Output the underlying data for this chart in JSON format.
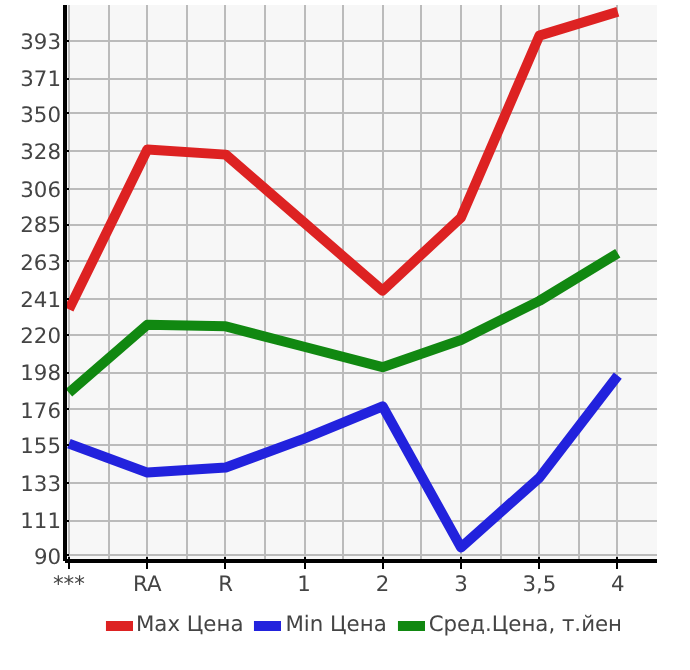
{
  "chart_data": {
    "type": "line",
    "categories": [
      "***",
      "RA",
      "R",
      "1",
      "2",
      "3",
      "3,5",
      "4"
    ],
    "series": [
      {
        "name": "Max Цена",
        "color": "#dd2222",
        "values": [
          235,
          329,
          326,
          286,
          246,
          289,
          396,
          410
        ]
      },
      {
        "name": "Min Цена",
        "color": "#2222dd",
        "values": [
          156,
          139,
          142,
          159,
          178,
          95,
          136,
          196
        ]
      },
      {
        "name": "Сред.Цена, т.йен",
        "color": "#118811",
        "values": [
          186,
          226,
          225,
          213,
          201,
          217,
          240,
          268
        ]
      }
    ],
    "ylim": [
      87,
      414
    ],
    "yticks": [
      90,
      111,
      133,
      155,
      176,
      198,
      220,
      241,
      263,
      285,
      306,
      328,
      350,
      371,
      393
    ],
    "grid": true,
    "legend": "bottom",
    "marker": "none",
    "line_style": "solid"
  }
}
